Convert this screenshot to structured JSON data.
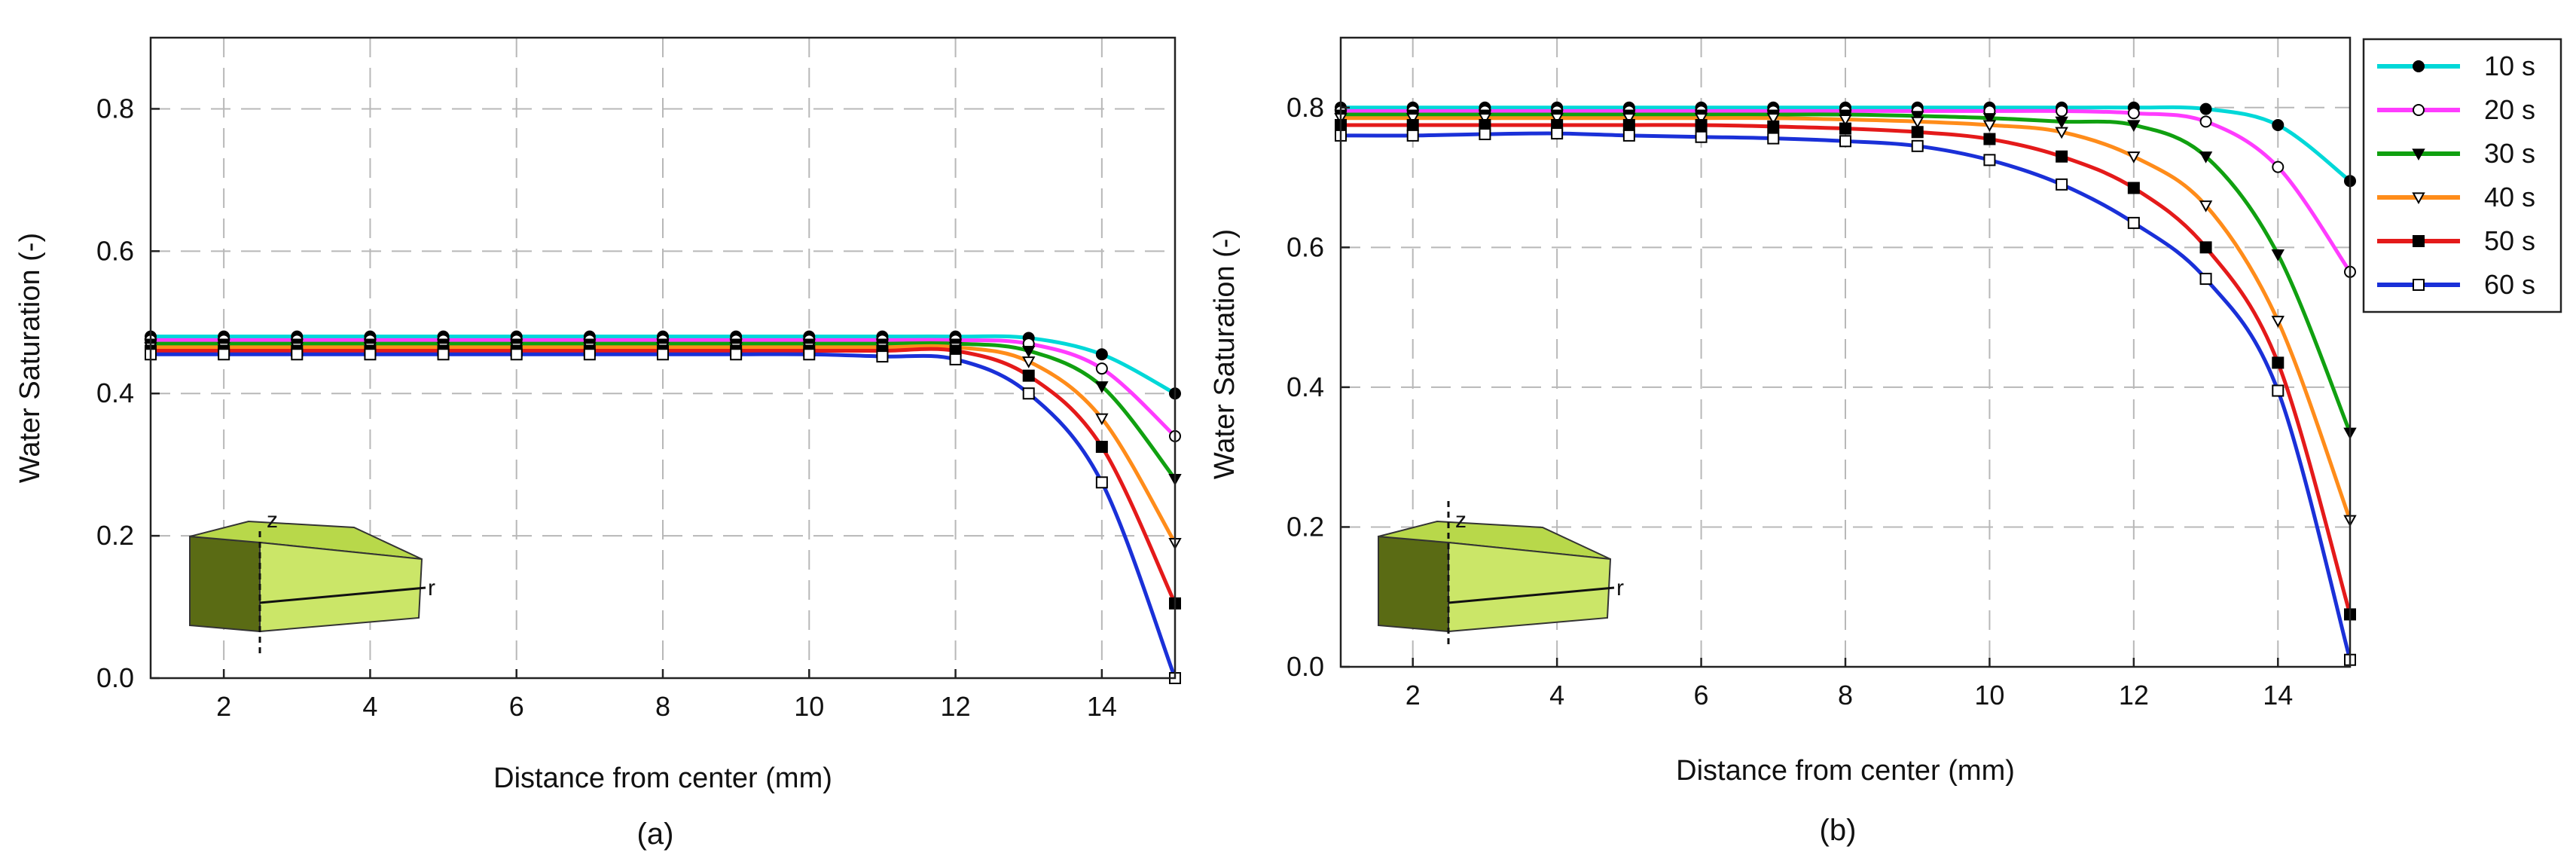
{
  "chart_data": [
    {
      "type": "line",
      "caption": "(a)",
      "xlabel": "Distance from center (mm)",
      "ylabel": "Water Saturation (-)",
      "xlim": [
        1,
        15
      ],
      "ylim": [
        0,
        0.9
      ],
      "xticks": [
        2,
        4,
        6,
        8,
        10,
        12,
        14
      ],
      "xtick_labels": [
        "2",
        "4",
        "6",
        "8",
        "10",
        "12",
        "14"
      ],
      "yticks": [
        0.0,
        0.2,
        0.4,
        0.6,
        0.8
      ],
      "ytick_labels": [
        "0.0",
        "0.2",
        "0.4",
        "0.6",
        "0.8"
      ],
      "grid": true,
      "x": [
        1,
        2,
        3,
        4,
        5,
        6,
        7,
        8,
        9,
        10,
        11,
        12,
        13,
        14,
        15
      ],
      "series": [
        {
          "name": "10 s",
          "color": "#00d8d8",
          "marker": "filled-circle",
          "values": [
            0.48,
            0.48,
            0.48,
            0.48,
            0.48,
            0.48,
            0.48,
            0.48,
            0.48,
            0.48,
            0.48,
            0.48,
            0.478,
            0.455,
            0.4
          ]
        },
        {
          "name": "20 s",
          "color": "#ff3cff",
          "marker": "open-circle",
          "values": [
            0.475,
            0.475,
            0.475,
            0.475,
            0.475,
            0.475,
            0.475,
            0.475,
            0.475,
            0.475,
            0.475,
            0.475,
            0.47,
            0.435,
            0.34
          ]
        },
        {
          "name": "30 s",
          "color": "#10a010",
          "marker": "filled-triangle",
          "values": [
            0.47,
            0.47,
            0.47,
            0.47,
            0.47,
            0.47,
            0.47,
            0.47,
            0.47,
            0.47,
            0.47,
            0.47,
            0.46,
            0.41,
            0.28
          ]
        },
        {
          "name": "40 s",
          "color": "#ff8c1a",
          "marker": "open-triangle",
          "values": [
            0.465,
            0.465,
            0.465,
            0.465,
            0.465,
            0.465,
            0.465,
            0.465,
            0.465,
            0.465,
            0.465,
            0.465,
            0.445,
            0.365,
            0.19
          ]
        },
        {
          "name": "50 s",
          "color": "#e41a1a",
          "marker": "filled-square",
          "values": [
            0.46,
            0.46,
            0.46,
            0.46,
            0.46,
            0.46,
            0.46,
            0.46,
            0.46,
            0.46,
            0.46,
            0.46,
            0.425,
            0.325,
            0.105
          ]
        },
        {
          "name": "60 s",
          "color": "#1a30d8",
          "marker": "open-square",
          "values": [
            0.455,
            0.455,
            0.455,
            0.455,
            0.455,
            0.455,
            0.455,
            0.455,
            0.455,
            0.455,
            0.452,
            0.448,
            0.4,
            0.275,
            0.0
          ]
        }
      ],
      "inset": {
        "z_label": "z",
        "r_label": "r"
      }
    },
    {
      "type": "line",
      "caption": "(b)",
      "xlabel": "Distance from center (mm)",
      "ylabel": "Water Saturation (-)",
      "xlim": [
        1,
        15
      ],
      "ylim": [
        0,
        0.9
      ],
      "xticks": [
        2,
        4,
        6,
        8,
        10,
        12,
        14
      ],
      "xtick_labels": [
        "2",
        "4",
        "6",
        "8",
        "10",
        "12",
        "14"
      ],
      "yticks": [
        0.0,
        0.2,
        0.4,
        0.6,
        0.8
      ],
      "ytick_labels": [
        "0.0",
        "0.2",
        "0.4",
        "0.6",
        "0.8"
      ],
      "grid": true,
      "legend_position": "outside-top-right",
      "x": [
        1,
        2,
        3,
        4,
        5,
        6,
        7,
        8,
        9,
        10,
        11,
        12,
        13,
        14,
        15
      ],
      "series": [
        {
          "name": "10 s",
          "color": "#00d8d8",
          "marker": "filled-circle",
          "values": [
            0.8,
            0.8,
            0.8,
            0.8,
            0.8,
            0.8,
            0.8,
            0.8,
            0.8,
            0.8,
            0.8,
            0.8,
            0.798,
            0.775,
            0.695
          ]
        },
        {
          "name": "20 s",
          "color": "#ff3cff",
          "marker": "open-circle",
          "values": [
            0.795,
            0.795,
            0.795,
            0.795,
            0.795,
            0.795,
            0.795,
            0.795,
            0.795,
            0.795,
            0.795,
            0.792,
            0.78,
            0.715,
            0.565
          ]
        },
        {
          "name": "30 s",
          "color": "#10a010",
          "marker": "filled-triangle",
          "values": [
            0.79,
            0.79,
            0.79,
            0.79,
            0.79,
            0.79,
            0.79,
            0.79,
            0.788,
            0.785,
            0.78,
            0.775,
            0.73,
            0.59,
            0.335
          ]
        },
        {
          "name": "40 s",
          "color": "#ff8c1a",
          "marker": "open-triangle",
          "values": [
            0.785,
            0.785,
            0.785,
            0.785,
            0.785,
            0.785,
            0.785,
            0.783,
            0.78,
            0.775,
            0.765,
            0.73,
            0.66,
            0.495,
            0.21
          ]
        },
        {
          "name": "50 s",
          "color": "#e41a1a",
          "marker": "filled-square",
          "values": [
            0.775,
            0.775,
            0.775,
            0.775,
            0.775,
            0.775,
            0.773,
            0.77,
            0.765,
            0.755,
            0.73,
            0.685,
            0.6,
            0.435,
            0.075
          ]
        },
        {
          "name": "60 s",
          "color": "#1a30d8",
          "marker": "open-square",
          "values": [
            0.76,
            0.76,
            0.762,
            0.763,
            0.76,
            0.758,
            0.756,
            0.752,
            0.745,
            0.725,
            0.69,
            0.635,
            0.555,
            0.395,
            0.01
          ]
        }
      ],
      "inset": {
        "z_label": "z",
        "r_label": "r"
      }
    }
  ]
}
